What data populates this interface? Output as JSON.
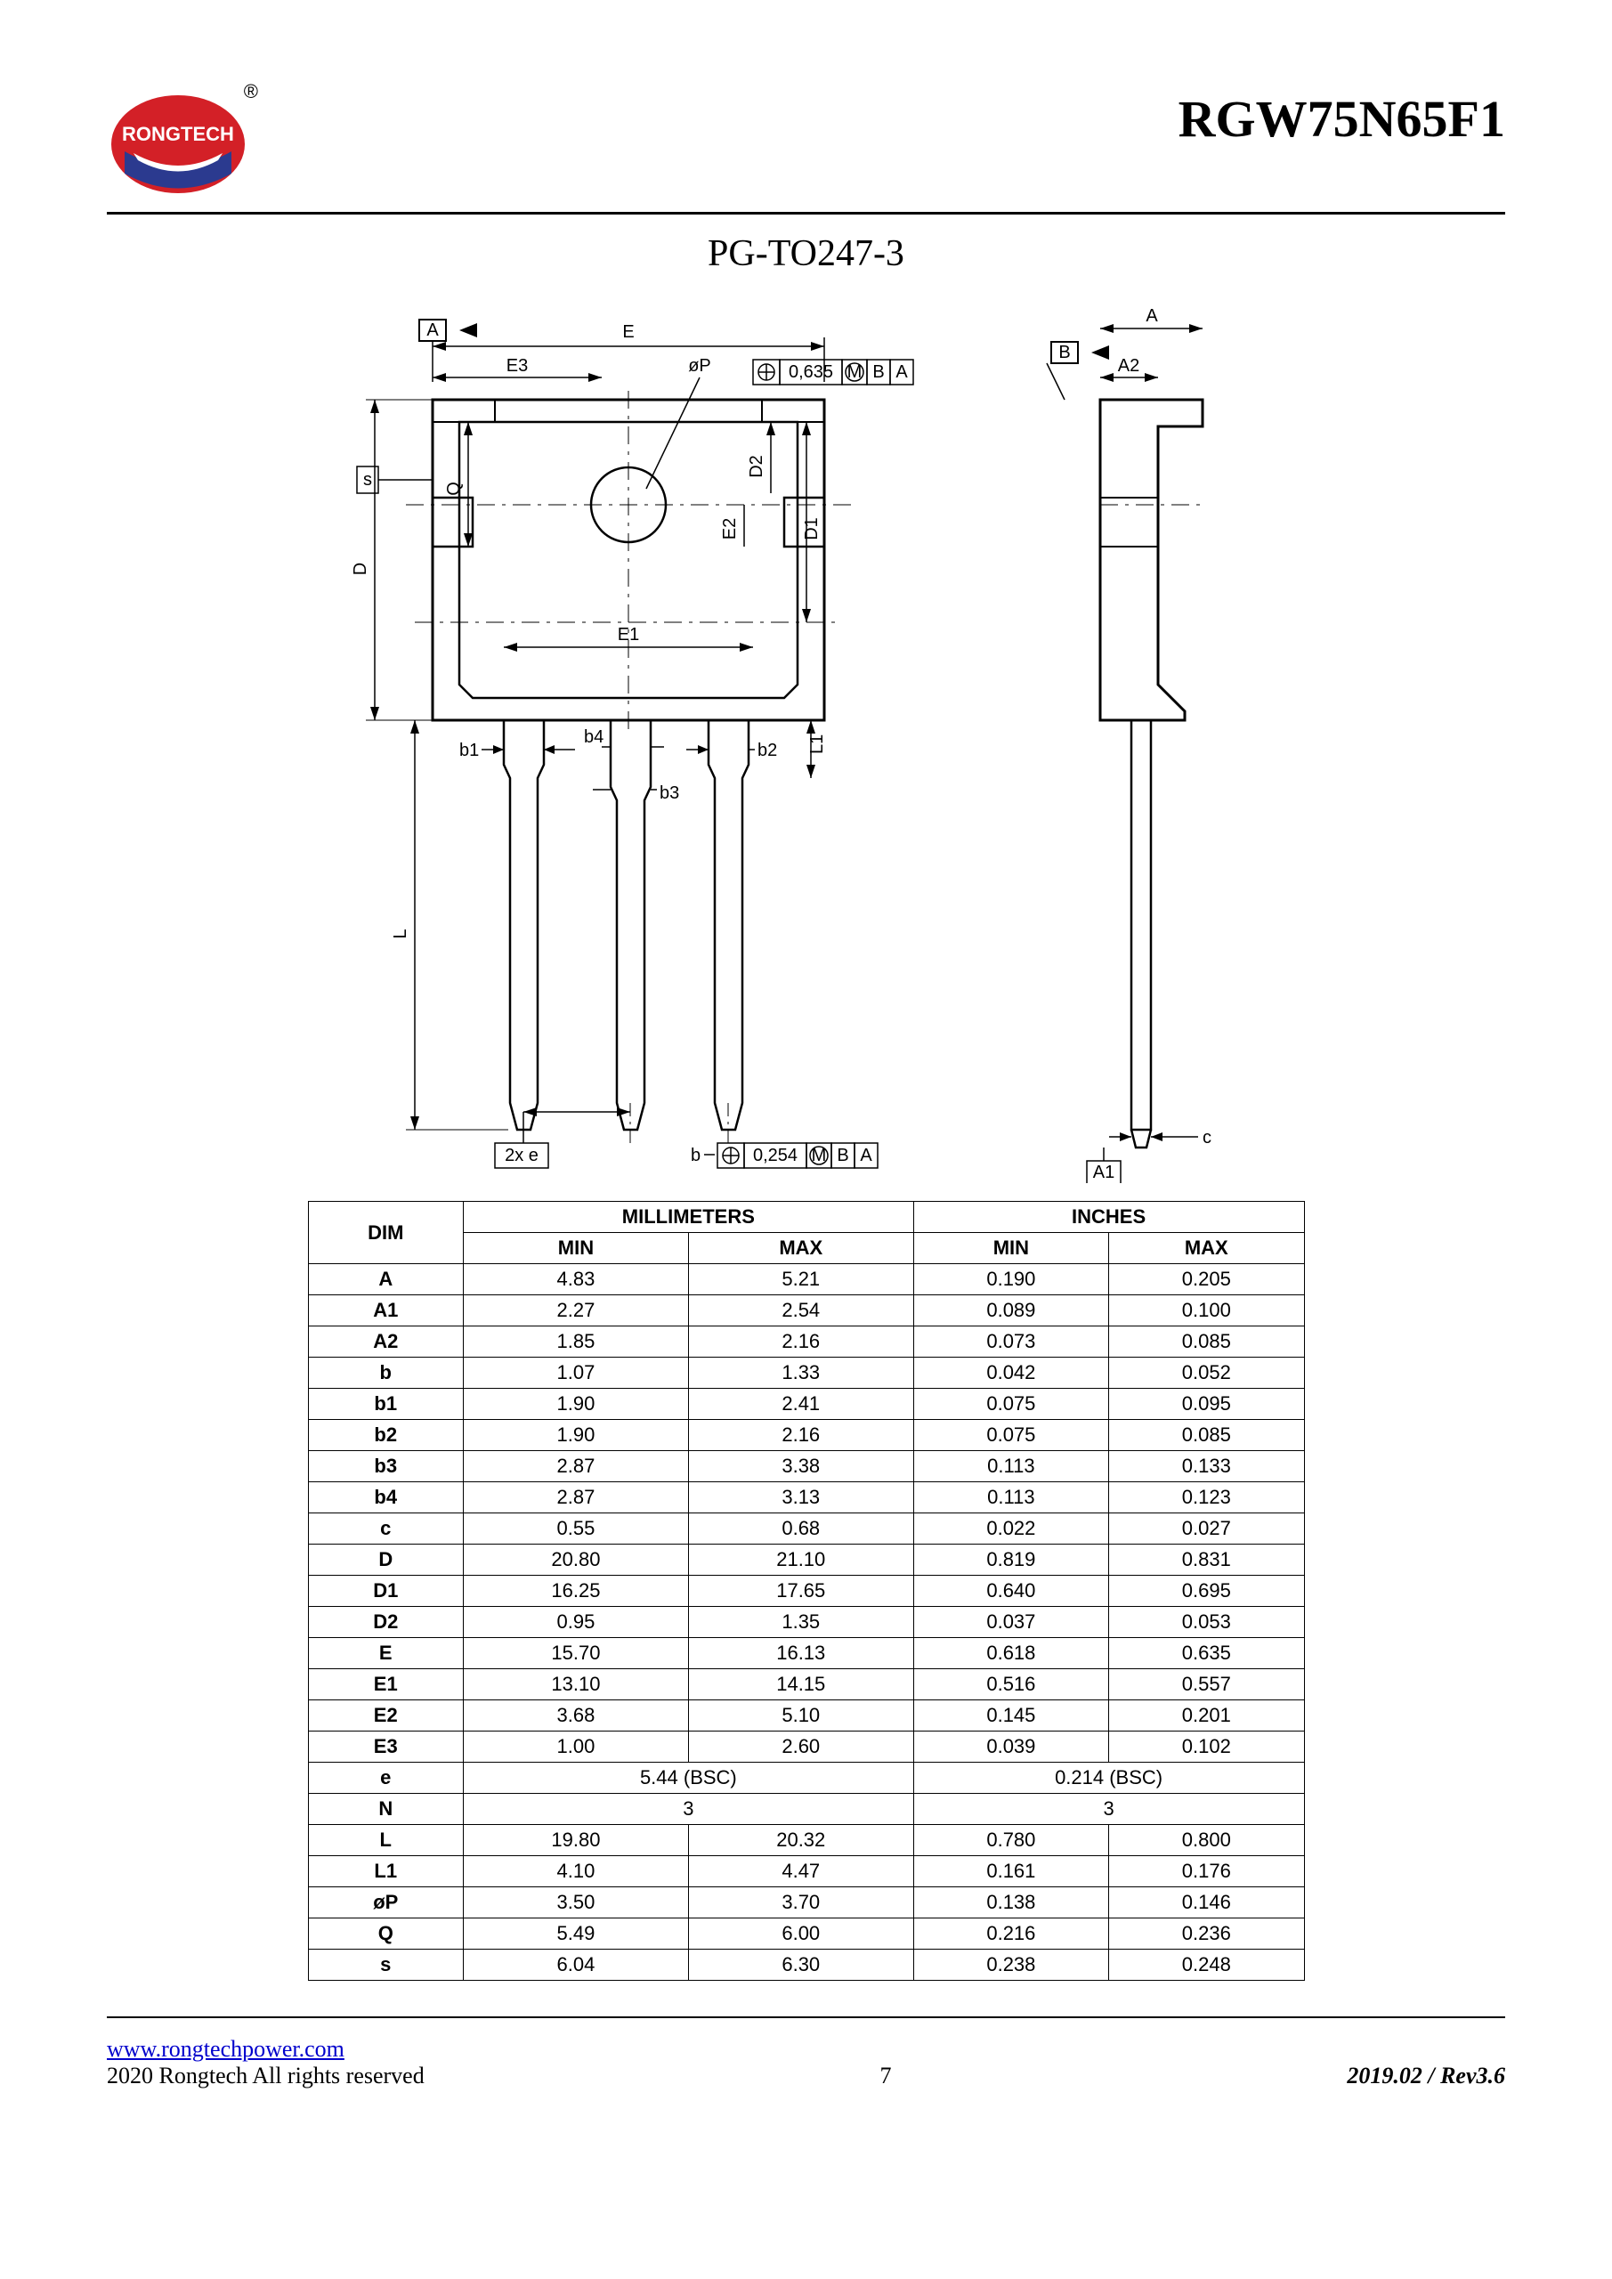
{
  "header": {
    "logo_text": "RONGTECH",
    "registered": "®",
    "part_number": "RGW75N65F1"
  },
  "package_title": "PG-TO247-3",
  "diagram": {
    "labels": {
      "A": "A",
      "B": "B",
      "A1": "A1",
      "A2": "A2",
      "E": "E",
      "E1": "E1",
      "E2": "E2",
      "E3": "E3",
      "D": "D",
      "D1": "D1",
      "D2": "D2",
      "b": "b",
      "b1": "b1",
      "b2": "b2",
      "b3": "b3",
      "b4": "b4",
      "c": "c",
      "L": "L",
      "L1": "L1",
      "Q": "Q",
      "s": "s",
      "phiP": "øP",
      "2xe": "2x e",
      "tol1": "0,635",
      "tol2": "0,254",
      "tol_suffix": "M B A"
    }
  },
  "table": {
    "headers": {
      "dim": "DIM",
      "mm": "MILLIMETERS",
      "in": "INCHES",
      "min": "MIN",
      "max": "MAX"
    },
    "rows": [
      {
        "dim": "A",
        "mm_min": "4.83",
        "mm_max": "5.21",
        "in_min": "0.190",
        "in_max": "0.205"
      },
      {
        "dim": "A1",
        "mm_min": "2.27",
        "mm_max": "2.54",
        "in_min": "0.089",
        "in_max": "0.100"
      },
      {
        "dim": "A2",
        "mm_min": "1.85",
        "mm_max": "2.16",
        "in_min": "0.073",
        "in_max": "0.085"
      },
      {
        "dim": "b",
        "mm_min": "1.07",
        "mm_max": "1.33",
        "in_min": "0.042",
        "in_max": "0.052"
      },
      {
        "dim": "b1",
        "mm_min": "1.90",
        "mm_max": "2.41",
        "in_min": "0.075",
        "in_max": "0.095"
      },
      {
        "dim": "b2",
        "mm_min": "1.90",
        "mm_max": "2.16",
        "in_min": "0.075",
        "in_max": "0.085"
      },
      {
        "dim": "b3",
        "mm_min": "2.87",
        "mm_max": "3.38",
        "in_min": "0.113",
        "in_max": "0.133"
      },
      {
        "dim": "b4",
        "mm_min": "2.87",
        "mm_max": "3.13",
        "in_min": "0.113",
        "in_max": "0.123"
      },
      {
        "dim": "c",
        "mm_min": "0.55",
        "mm_max": "0.68",
        "in_min": "0.022",
        "in_max": "0.027"
      },
      {
        "dim": "D",
        "mm_min": "20.80",
        "mm_max": "21.10",
        "in_min": "0.819",
        "in_max": "0.831"
      },
      {
        "dim": "D1",
        "mm_min": "16.25",
        "mm_max": "17.65",
        "in_min": "0.640",
        "in_max": "0.695"
      },
      {
        "dim": "D2",
        "mm_min": "0.95",
        "mm_max": "1.35",
        "in_min": "0.037",
        "in_max": "0.053"
      },
      {
        "dim": "E",
        "mm_min": "15.70",
        "mm_max": "16.13",
        "in_min": "0.618",
        "in_max": "0.635"
      },
      {
        "dim": "E1",
        "mm_min": "13.10",
        "mm_max": "14.15",
        "in_min": "0.516",
        "in_max": "0.557"
      },
      {
        "dim": "E2",
        "mm_min": "3.68",
        "mm_max": "5.10",
        "in_min": "0.145",
        "in_max": "0.201"
      },
      {
        "dim": "E3",
        "mm_min": "1.00",
        "mm_max": "2.60",
        "in_min": "0.039",
        "in_max": "0.102"
      },
      {
        "dim": "e",
        "mm_span": "5.44 (BSC)",
        "in_span": "0.214 (BSC)"
      },
      {
        "dim": "N",
        "mm_span": "3",
        "in_span": "3"
      },
      {
        "dim": "L",
        "mm_min": "19.80",
        "mm_max": "20.32",
        "in_min": "0.780",
        "in_max": "0.800"
      },
      {
        "dim": "L1",
        "mm_min": "4.10",
        "mm_max": "4.47",
        "in_min": "0.161",
        "in_max": "0.176"
      },
      {
        "dim": "øP",
        "mm_min": "3.50",
        "mm_max": "3.70",
        "in_min": "0.138",
        "in_max": "0.146"
      },
      {
        "dim": "Q",
        "mm_min": "5.49",
        "mm_max": "6.00",
        "in_min": "0.216",
        "in_max": "0.236"
      },
      {
        "dim": "s",
        "mm_min": "6.04",
        "mm_max": "6.30",
        "in_min": "0.238",
        "in_max": "0.248"
      }
    ]
  },
  "footer": {
    "url": "www.rongtechpower.com",
    "copyright": "2020 Rongtech All rights reserved",
    "page": "7",
    "rev": "2019.02 / Rev3.6"
  },
  "colors": {
    "logo_red": "#d32027",
    "logo_blue": "#2b3a8f",
    "link": "#0000cc"
  }
}
